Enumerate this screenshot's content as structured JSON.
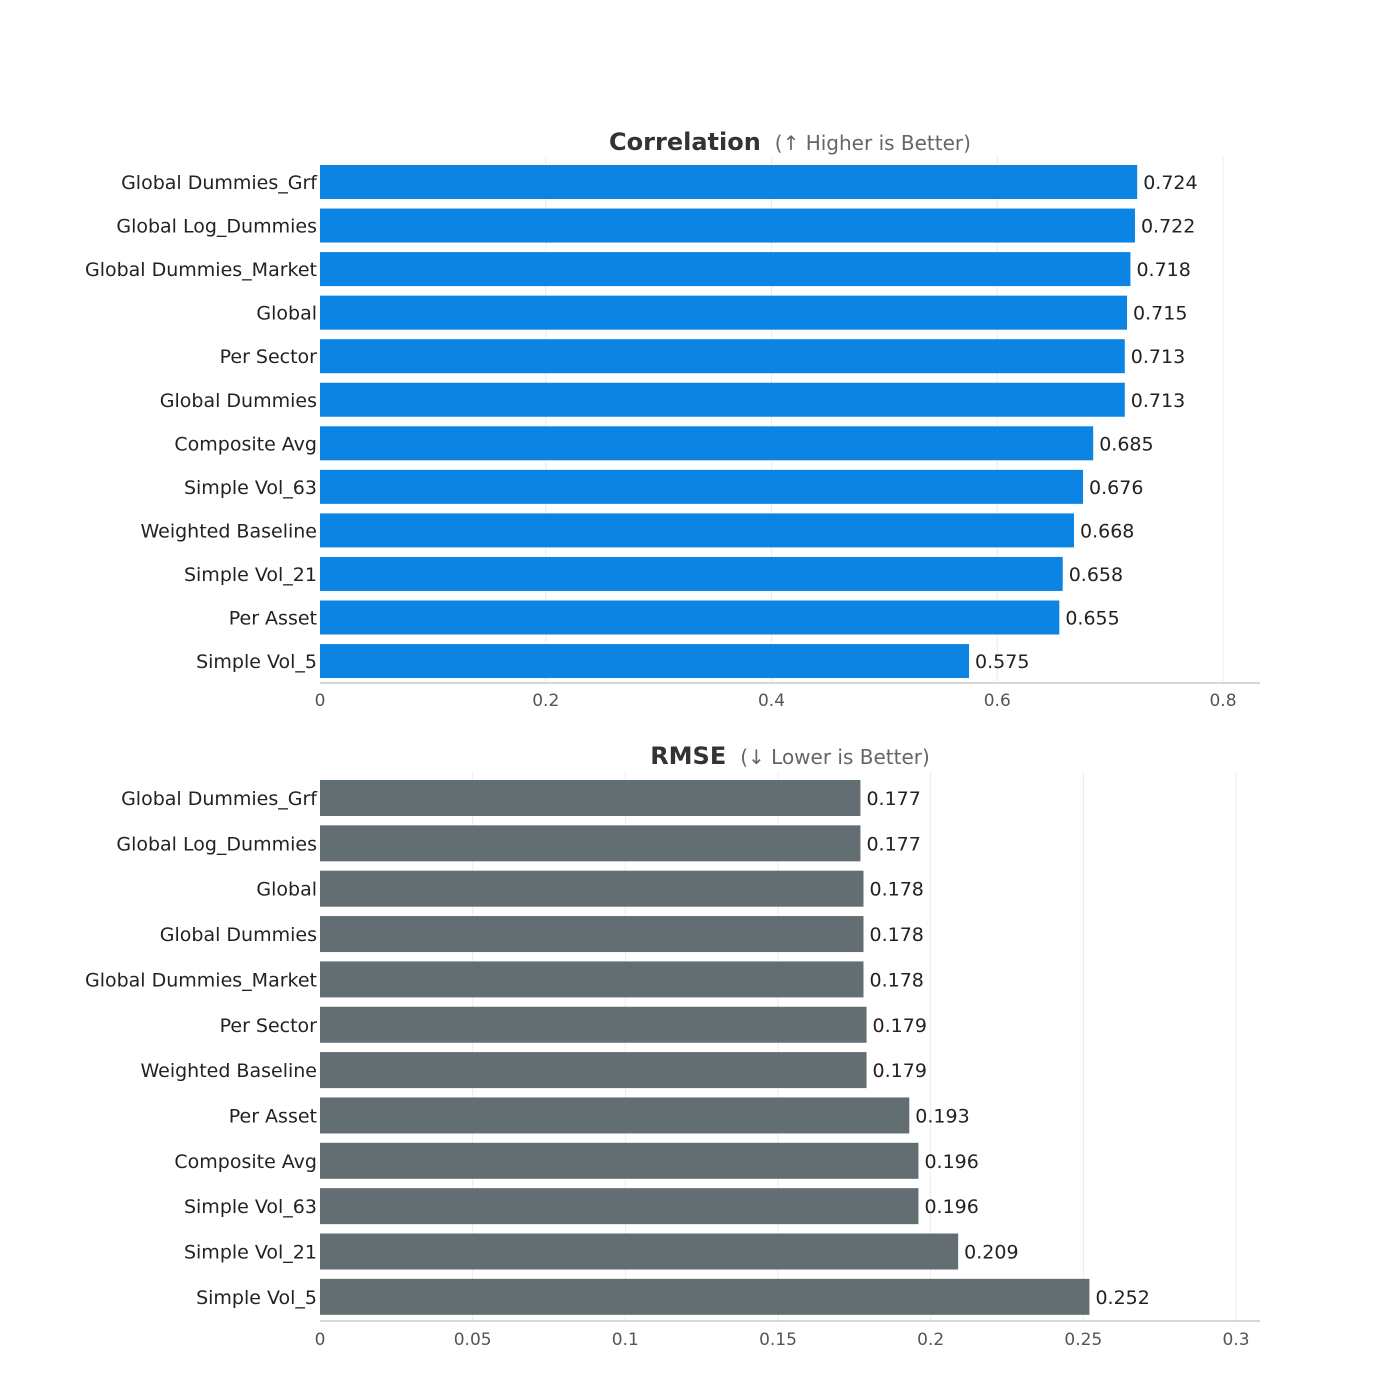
{
  "chart_data": [
    {
      "type": "bar",
      "orientation": "horizontal",
      "title": "Correlation",
      "subtitle": "(↑ Higher is Better)",
      "color": "#0b84e3",
      "xlim": [
        0,
        0.8
      ],
      "ticks": [
        "0",
        "0.2",
        "0.4",
        "0.6",
        "0.8"
      ],
      "tick_values": [
        0,
        0.2,
        0.4,
        0.6,
        0.8
      ],
      "categories": [
        "Global Dummies_Grf",
        "Global Log_Dummies",
        "Global Dummies_Market",
        "Global",
        "Per Sector",
        "Global Dummies",
        "Composite Avg",
        "Simple Vol_63",
        "Weighted Baseline",
        "Simple Vol_21",
        "Per Asset",
        "Simple Vol_5"
      ],
      "values": [
        0.724,
        0.722,
        0.718,
        0.715,
        0.713,
        0.713,
        0.685,
        0.676,
        0.668,
        0.658,
        0.655,
        0.575
      ],
      "value_labels": [
        "0.724",
        "0.722",
        "0.718",
        "0.715",
        "0.713",
        "0.713",
        "0.685",
        "0.676",
        "0.668",
        "0.658",
        "0.655",
        "0.575"
      ]
    },
    {
      "type": "bar",
      "orientation": "horizontal",
      "title": "RMSE",
      "subtitle": "(↓ Lower is Better)",
      "color": "#636e73",
      "xlim": [
        0,
        0.3
      ],
      "ticks": [
        "0",
        "0.05",
        "0.1",
        "0.15",
        "0.2",
        "0.25",
        "0.3"
      ],
      "tick_values": [
        0,
        0.05,
        0.1,
        0.15,
        0.2,
        0.25,
        0.3
      ],
      "categories": [
        "Global Dummies_Grf",
        "Global Log_Dummies",
        "Global",
        "Global Dummies",
        "Global Dummies_Market",
        "Per Sector",
        "Weighted Baseline",
        "Per Asset",
        "Composite Avg",
        "Simple Vol_63",
        "Simple Vol_21",
        "Simple Vol_5"
      ],
      "values": [
        0.177,
        0.177,
        0.178,
        0.178,
        0.178,
        0.179,
        0.179,
        0.193,
        0.196,
        0.196,
        0.209,
        0.252
      ],
      "value_labels": [
        "0.177",
        "0.177",
        "0.178",
        "0.178",
        "0.178",
        "0.179",
        "0.179",
        "0.193",
        "0.196",
        "0.196",
        "0.209",
        "0.252"
      ]
    }
  ]
}
